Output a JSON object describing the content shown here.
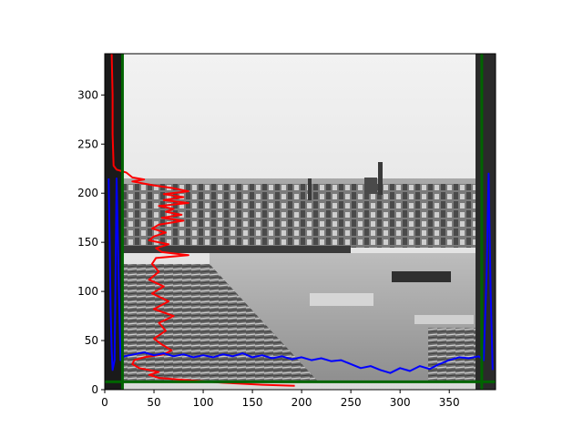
{
  "chart_data": {
    "type": "line",
    "title": "",
    "xlabel": "",
    "ylabel": "",
    "xlim": [
      0,
      397
    ],
    "ylim": [
      0,
      342
    ],
    "x_ticks": [
      0,
      50,
      100,
      150,
      200,
      250,
      300,
      350
    ],
    "y_ticks": [
      0,
      50,
      100,
      150,
      200,
      250,
      300
    ],
    "grid": false,
    "legend": "none",
    "background_image": "grayscale photograph of a river town with log rafts, bridge and church",
    "series": [
      {
        "color": "#ff0000",
        "orientation": "vertical-profile",
        "points": [
          [
            7,
            342
          ],
          [
            8,
            300
          ],
          [
            8,
            260
          ],
          [
            9,
            228
          ],
          [
            12,
            224
          ],
          [
            22,
            221
          ],
          [
            28,
            216
          ],
          [
            40,
            214
          ],
          [
            28,
            212
          ],
          [
            50,
            208
          ],
          [
            70,
            205
          ],
          [
            85,
            202
          ],
          [
            60,
            199
          ],
          [
            80,
            196
          ],
          [
            60,
            193
          ],
          [
            85,
            190
          ],
          [
            55,
            187
          ],
          [
            70,
            184
          ],
          [
            62,
            181
          ],
          [
            78,
            178
          ],
          [
            58,
            175
          ],
          [
            80,
            172
          ],
          [
            55,
            168
          ],
          [
            48,
            164
          ],
          [
            62,
            160
          ],
          [
            50,
            156
          ],
          [
            45,
            152
          ],
          [
            65,
            148
          ],
          [
            52,
            144
          ],
          [
            58,
            140
          ],
          [
            85,
            137
          ],
          [
            52,
            134
          ],
          [
            48,
            128
          ],
          [
            55,
            120
          ],
          [
            45,
            112
          ],
          [
            60,
            105
          ],
          [
            48,
            98
          ],
          [
            65,
            90
          ],
          [
            50,
            82
          ],
          [
            70,
            75
          ],
          [
            55,
            68
          ],
          [
            62,
            60
          ],
          [
            50,
            52
          ],
          [
            58,
            46
          ],
          [
            68,
            40
          ],
          [
            60,
            36
          ],
          [
            40,
            33
          ],
          [
            30,
            30
          ],
          [
            28,
            26
          ],
          [
            35,
            22
          ],
          [
            55,
            18
          ],
          [
            45,
            15
          ],
          [
            55,
            12
          ],
          [
            80,
            10
          ],
          [
            120,
            7
          ],
          [
            160,
            5
          ],
          [
            193,
            4
          ]
        ]
      },
      {
        "color": "#0000ff",
        "orientation": "horizontal-profile",
        "points": [
          [
            4,
            215
          ],
          [
            5,
            150
          ],
          [
            6,
            80
          ],
          [
            7,
            40
          ],
          [
            8,
            20
          ],
          [
            10,
            30
          ],
          [
            12,
            215
          ],
          [
            14,
            120
          ],
          [
            16,
            30
          ],
          [
            20,
            34
          ],
          [
            30,
            36
          ],
          [
            40,
            38
          ],
          [
            50,
            35
          ],
          [
            60,
            37
          ],
          [
            70,
            34
          ],
          [
            80,
            36
          ],
          [
            90,
            33
          ],
          [
            100,
            35
          ],
          [
            110,
            33
          ],
          [
            120,
            36
          ],
          [
            130,
            34
          ],
          [
            140,
            37
          ],
          [
            150,
            33
          ],
          [
            160,
            35
          ],
          [
            170,
            32
          ],
          [
            180,
            34
          ],
          [
            190,
            31
          ],
          [
            200,
            33
          ],
          [
            210,
            30
          ],
          [
            220,
            32
          ],
          [
            230,
            29
          ],
          [
            240,
            30
          ],
          [
            250,
            26
          ],
          [
            260,
            22
          ],
          [
            270,
            24
          ],
          [
            280,
            20
          ],
          [
            290,
            17
          ],
          [
            300,
            22
          ],
          [
            310,
            19
          ],
          [
            320,
            24
          ],
          [
            330,
            21
          ],
          [
            340,
            26
          ],
          [
            350,
            30
          ],
          [
            360,
            33
          ],
          [
            370,
            32
          ],
          [
            380,
            34
          ],
          [
            385,
            30
          ],
          [
            388,
            120
          ],
          [
            390,
            220
          ],
          [
            392,
            100
          ],
          [
            394,
            20
          ]
        ]
      },
      {
        "color": "#006400",
        "orientation": "frame-borders",
        "points": [
          [
            0,
            8
          ],
          [
            397,
            8
          ],
          [
            18,
            0
          ],
          [
            18,
            342
          ],
          [
            383,
            0
          ],
          [
            383,
            342
          ]
        ]
      }
    ]
  }
}
